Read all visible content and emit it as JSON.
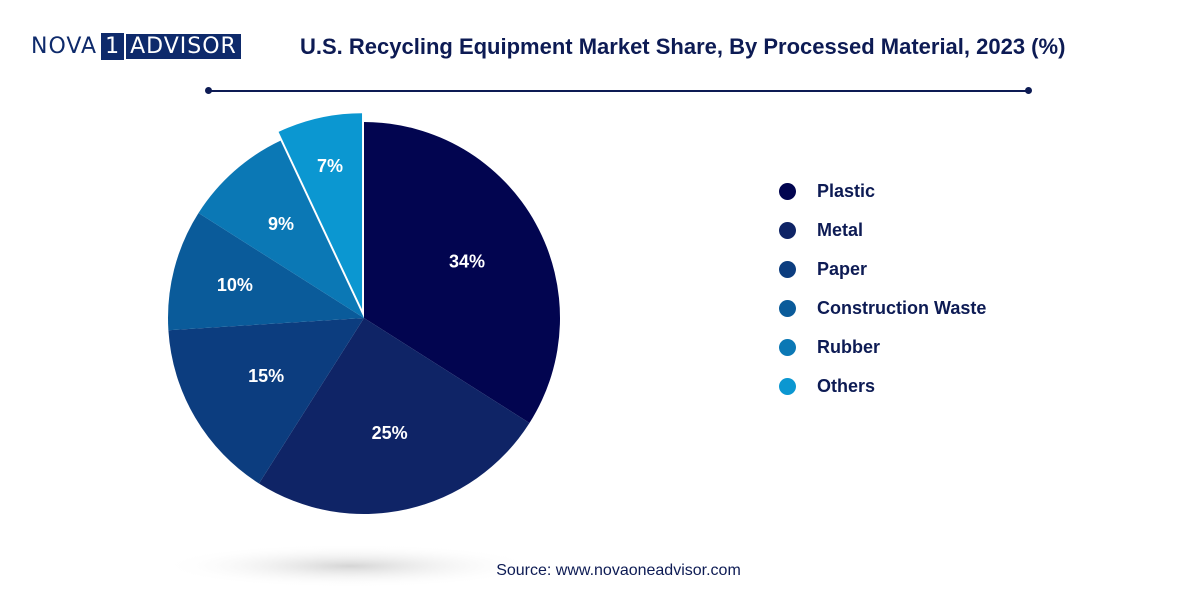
{
  "logo": {
    "nova": "NOVA",
    "one": "1",
    "advisor": "ADVISOR"
  },
  "header": {
    "title": "U.S. Recycling Equipment Market Share, By Processed Material, 2023 (%)"
  },
  "footer": {
    "source": "Source: www.novaoneadvisor.com"
  },
  "chart_data": {
    "type": "pie",
    "title": "U.S. Recycling Equipment Market Share, By Processed Material, 2023 (%)",
    "categories": [
      "Plastic",
      "Metal",
      "Paper",
      "Construction Waste",
      "Rubber",
      "Others"
    ],
    "values": [
      34,
      25,
      15,
      10,
      9,
      7
    ],
    "labels": [
      "34%",
      "25%",
      "15%",
      "10%",
      "9%",
      "7%"
    ],
    "colors": [
      "#020550",
      "#0f2466",
      "#0c3d7f",
      "#0a5b9a",
      "#0b78b5",
      "#0b97d1"
    ],
    "legend_position": "right"
  }
}
